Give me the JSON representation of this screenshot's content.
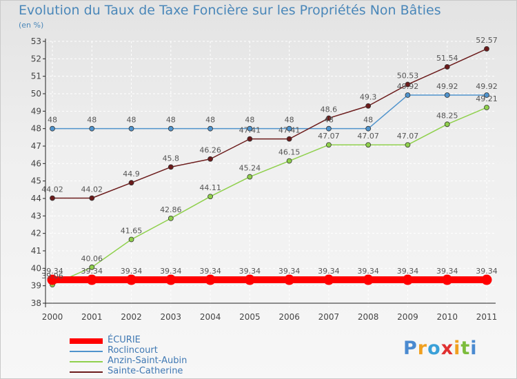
{
  "title": "Evolution du Taux de Taxe Foncière sur les Propriétés Non Bâties",
  "subtitle": "(en %)",
  "brand": {
    "text": "Proxiti",
    "colors": [
      "#4a8ad0",
      "#f0a020",
      "#3aa0d8",
      "#e03030",
      "#f0a020",
      "#7cbc3c",
      "#4a8ad0"
    ]
  },
  "chart_data": {
    "type": "line",
    "x": [
      "2000",
      "2001",
      "2002",
      "2003",
      "2004",
      "2005",
      "2006",
      "2007",
      "2008",
      "2009",
      "2010",
      "2011"
    ],
    "ylim": [
      38,
      53
    ],
    "yticks": [
      38,
      39,
      40,
      41,
      42,
      43,
      44,
      45,
      46,
      47,
      48,
      49,
      50,
      51,
      52,
      53
    ],
    "grid": true,
    "legend_position": "bottom-left",
    "series": [
      {
        "name": "ÉCURIE",
        "color": "#ff0000",
        "values": [
          39.34,
          39.34,
          39.34,
          39.34,
          39.34,
          39.34,
          39.34,
          39.34,
          39.34,
          39.34,
          39.34,
          39.34
        ],
        "labels": [
          "39.34",
          "39.34",
          "39.34",
          "39.34",
          "39.34",
          "39.34",
          "39.34",
          "39.34",
          "39.34",
          "39.34",
          "39.34",
          "39.34"
        ]
      },
      {
        "name": "Roclincourt",
        "color": "#4f93cc",
        "values": [
          48,
          48,
          48,
          48,
          48,
          48,
          48,
          48,
          48,
          49.92,
          49.92,
          49.92
        ],
        "labels": [
          "48",
          "48",
          "48",
          "48",
          "48",
          "48",
          "48",
          "48",
          "48",
          "49.92",
          "49.92",
          "49.92"
        ]
      },
      {
        "name": "Anzin-Saint-Aubin",
        "color": "#8fd04c",
        "values": [
          39.06,
          40.06,
          41.65,
          42.86,
          44.11,
          45.24,
          46.15,
          47.07,
          47.07,
          47.07,
          48.25,
          49.21
        ],
        "labels": [
          "39.06",
          "40.06",
          "41.65",
          "42.86",
          "44.11",
          "45.24",
          "46.15",
          "47.07",
          "47.07",
          "47.07",
          "48.25",
          "49.21"
        ]
      },
      {
        "name": "Sainte-Catherine",
        "color": "#6b1b1b",
        "values": [
          44.02,
          44.02,
          44.9,
          45.8,
          46.26,
          47.41,
          47.41,
          48.6,
          49.3,
          50.53,
          51.54,
          52.57
        ],
        "labels": [
          "44.02",
          "44.02",
          "44.9",
          "45.8",
          "46.26",
          "47.41",
          "47.41",
          "48.6",
          "49.3",
          "50.53",
          "51.54",
          "52.57"
        ]
      }
    ]
  }
}
